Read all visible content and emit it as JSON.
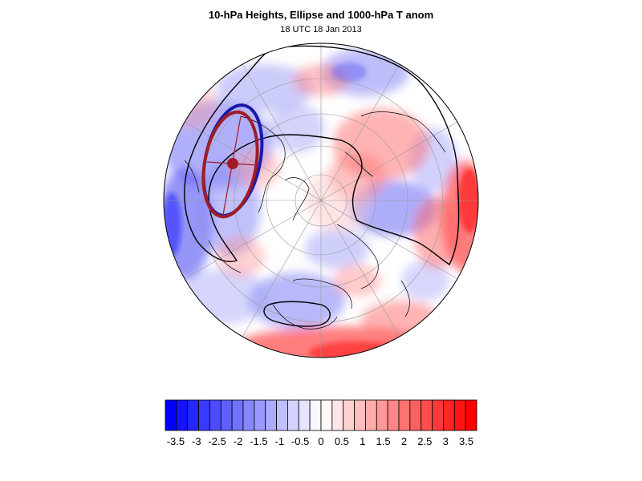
{
  "title": "10-hPa Heights, Ellipse and 1000-hPa T anom",
  "subtitle": "18 UTC 18 Jan 2013",
  "colors": {
    "cold": "#0000ff",
    "warm": "#ff0000",
    "ellipse_blue": "#1a1aa8",
    "ellipse_red": "#a01c24",
    "contour": "#000000",
    "coast": "#000000",
    "grid": "#9a9a9a"
  },
  "colorbar": {
    "levels": [
      "-3.5",
      "-3",
      "-2.5",
      "-2",
      "-1.5",
      "-1",
      "-0.5",
      "0",
      "0.5",
      "1",
      "1.5",
      "2",
      "2.5",
      "3",
      "3.5"
    ],
    "n_boxes": 28,
    "min": -3.75,
    "max": 3.75
  },
  "map": {
    "projection": "polar-stereographic",
    "hemisphere": "north",
    "field": "1000-hPa T anom",
    "contour_field": "10-hPa Heights",
    "overlay": "Ellipse"
  }
}
